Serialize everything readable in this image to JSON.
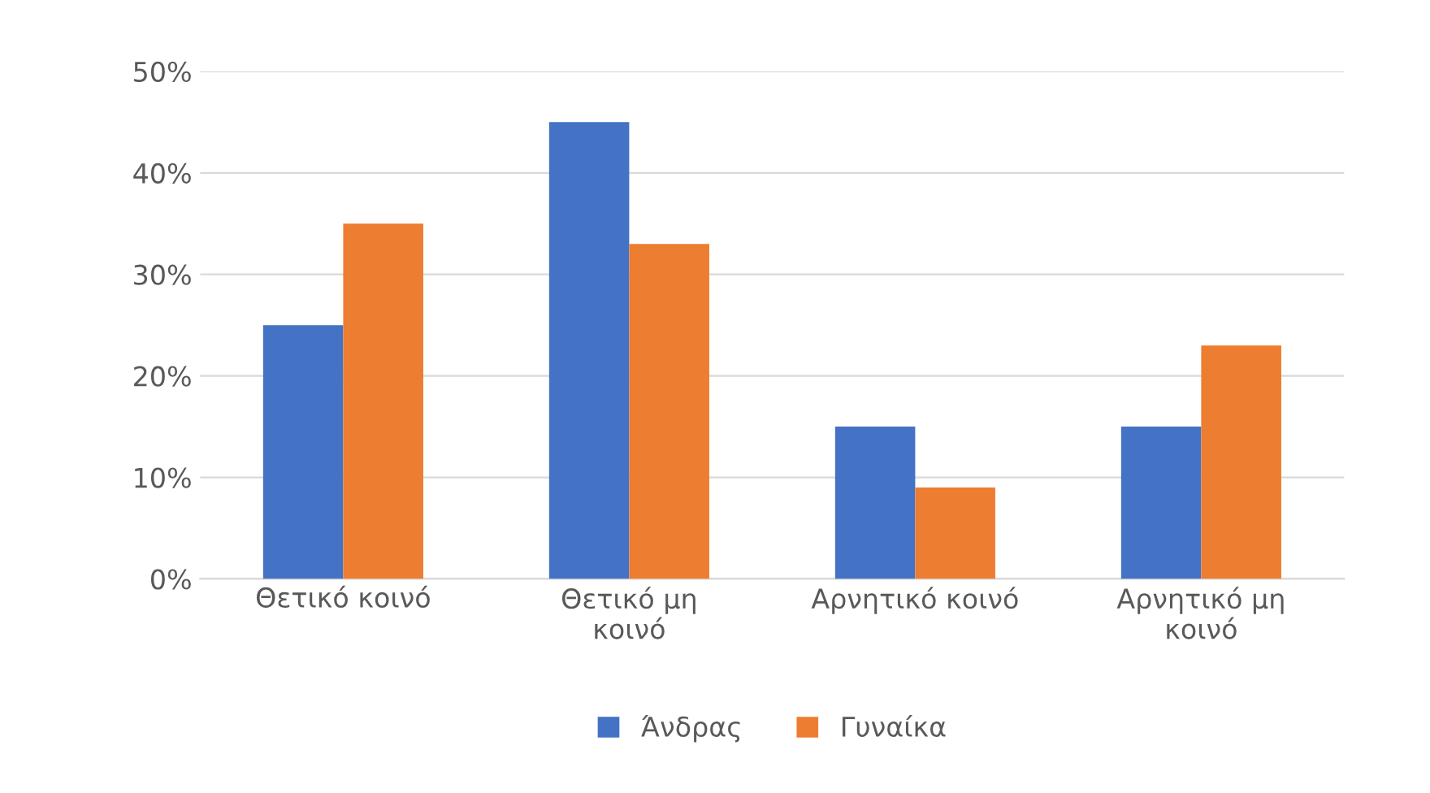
{
  "chart_data": {
    "type": "bar",
    "categories": [
      "Θετικό κοινό",
      "Θετικό μη\nκοινό",
      "Αρνητικό κοινό",
      "Αρνητικό μη\nκοινό"
    ],
    "series": [
      {
        "name": "Άνδρας",
        "color": "#4472c4",
        "values": [
          25,
          45,
          15,
          15
        ]
      },
      {
        "name": "Γυναίκα",
        "color": "#ed7d31",
        "values": [
          35,
          33,
          9,
          23
        ]
      }
    ],
    "ylim": [
      0,
      50
    ],
    "yticks": [
      {
        "value": 0,
        "label": "0%"
      },
      {
        "value": 10,
        "label": "10%"
      },
      {
        "value": 20,
        "label": "20%"
      },
      {
        "value": 30,
        "label": "30%"
      },
      {
        "value": 40,
        "label": "40%"
      },
      {
        "value": 50,
        "label": "50%"
      }
    ],
    "grid": "y",
    "legend": "bottom"
  }
}
